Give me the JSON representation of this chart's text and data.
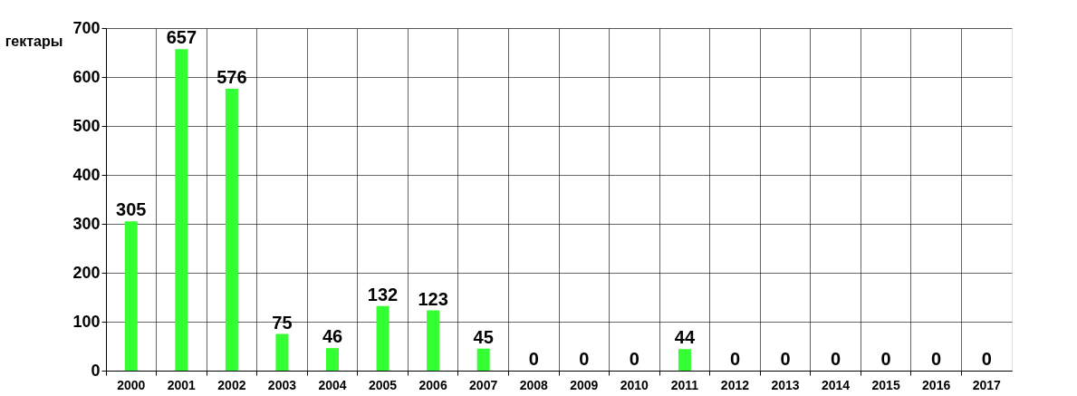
{
  "chart_data": {
    "type": "bar",
    "ylabel": "гектары",
    "categories": [
      "2000",
      "2001",
      "2002",
      "2003",
      "2004",
      "2005",
      "2006",
      "2007",
      "2008",
      "2009",
      "2010",
      "2011",
      "2012",
      "2013",
      "2014",
      "2015",
      "2016",
      "2017"
    ],
    "values": [
      305,
      657,
      576,
      75,
      46,
      132,
      123,
      45,
      0,
      0,
      0,
      44,
      0,
      0,
      0,
      0,
      0,
      0
    ],
    "color": "#33ff33",
    "ylim": [
      0,
      700
    ],
    "yticks": [
      0,
      100,
      200,
      300,
      400,
      500,
      600,
      700
    ],
    "grid": true,
    "data_labels": true
  }
}
